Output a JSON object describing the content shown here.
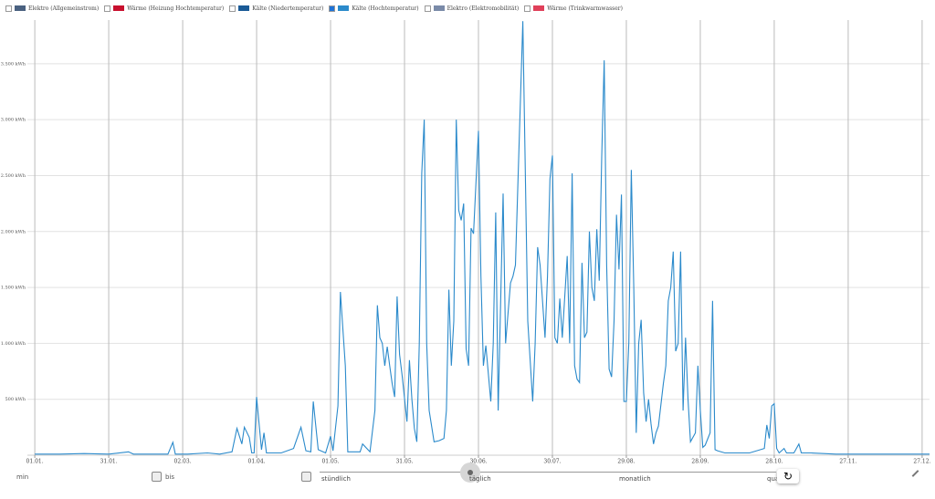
{
  "chart_data": {
    "type": "line",
    "series": [
      {
        "name": "Elektro (Allgemeinstrom)",
        "color": "#4a6180",
        "checked": false
      },
      {
        "name": "Wärme (Heizung Hochtemperatur)",
        "color": "#c8102e",
        "checked": false
      },
      {
        "name": "Kälte (Niedertemperatur)",
        "color": "#1a5a96",
        "checked": false
      },
      {
        "name": "Kälte (Hochtemperatur)",
        "color": "#2b8acb",
        "checked": true,
        "values": [
          10,
          10,
          15,
          10,
          30,
          10,
          10,
          10,
          115,
          10,
          10,
          20,
          10,
          30,
          240,
          100,
          250,
          160,
          20,
          20,
          520,
          50,
          200,
          20,
          20,
          60,
          250,
          40,
          30,
          480,
          50,
          20,
          170,
          40,
          440,
          1460,
          800,
          30,
          30,
          100,
          30,
          400,
          1340,
          1050,
          1000,
          800,
          970,
          800,
          640,
          520,
          1420,
          900,
          720,
          300,
          850,
          500,
          240,
          120,
          1000,
          2520,
          3000,
          1000,
          400,
          120,
          130,
          150,
          400,
          1480,
          800,
          1200,
          3000,
          2190,
          2100,
          2250,
          950,
          800,
          2030,
          1980,
          2900,
          1600,
          800,
          980,
          480,
          1000,
          2170,
          400,
          2340,
          1000,
          1540,
          1600,
          1700,
          3880,
          1200,
          480,
          1000,
          1860,
          1700,
          1050,
          1600,
          2470,
          2680,
          1050,
          1000,
          1400,
          1050,
          1780,
          1000,
          2520,
          800,
          680,
          650,
          1720,
          1050,
          1100,
          2000,
          1500,
          1380,
          2020,
          1560,
          2670,
          3530,
          1700,
          770,
          700,
          1200,
          2150,
          1660,
          2330,
          480,
          480,
          1010,
          2550,
          1500,
          200,
          1000,
          1210,
          560,
          300,
          500,
          280,
          100,
          200,
          260,
          640,
          800,
          1380,
          1500,
          1820,
          930,
          1000,
          1820,
          400,
          1050,
          500,
          120,
          200,
          800,
          400,
          70,
          90,
          200,
          1380,
          50,
          40,
          20,
          20,
          60,
          270,
          150,
          440,
          460,
          60,
          20,
          60,
          20,
          20,
          100,
          20,
          20,
          10,
          10,
          10
        ]
      },
      {
        "name": "Elektro (Elektromobilität)",
        "color": "#7a8aa8",
        "checked": false
      },
      {
        "name": "Wärme (Trinkwarmwasser)",
        "color": "#e0405a",
        "checked": false
      }
    ],
    "x": [
      0,
      10,
      20,
      30,
      38,
      40,
      50,
      54,
      56,
      57,
      62,
      70,
      75,
      80,
      82,
      84,
      85,
      87,
      88,
      89,
      90,
      92,
      93,
      94,
      100,
      105,
      108,
      110,
      112,
      113,
      115,
      118,
      120,
      121,
      123,
      124,
      126,
      127,
      132,
      133,
      136,
      138,
      139,
      140,
      141,
      142,
      143,
      144,
      145,
      146,
      147,
      148,
      149,
      151,
      152,
      153,
      154,
      155,
      156,
      157,
      158,
      159,
      160,
      162,
      164,
      166,
      167,
      168,
      169,
      170,
      171,
      172,
      173,
      174,
      175,
      176,
      177,
      178,
      180,
      181,
      182,
      183,
      185,
      186,
      187,
      188,
      190,
      191,
      193,
      194,
      195,
      198,
      200,
      202,
      203,
      204,
      205,
      207,
      208,
      209,
      210,
      211,
      212,
      213,
      214,
      216,
      217,
      218,
      219,
      220,
      221,
      222,
      223,
      224,
      225,
      226,
      227,
      228,
      229,
      230,
      231,
      232,
      233,
      234,
      235,
      236,
      237,
      238,
      239,
      240,
      241,
      242,
      243,
      244,
      245,
      246,
      247,
      248,
      249,
      250,
      251,
      252,
      253,
      255,
      256,
      257,
      258,
      259,
      260,
      261,
      262,
      263,
      264,
      265,
      266,
      268,
      269,
      270,
      271,
      272,
      274,
      275,
      276,
      277,
      280,
      290,
      296,
      297,
      298,
      299,
      300,
      301,
      302,
      304,
      305,
      308,
      310,
      311,
      315,
      325,
      340,
      363
    ],
    "xlim": [
      -3,
      363
    ],
    "xticks": [
      {
        "value": 0,
        "label": "01.01."
      },
      {
        "value": 30,
        "label": "31.01."
      },
      {
        "value": 60,
        "label": "02.03."
      },
      {
        "value": 90,
        "label": "01.04."
      },
      {
        "value": 120,
        "label": "01.05."
      },
      {
        "value": 150,
        "label": "31.05."
      },
      {
        "value": 180,
        "label": "30.06."
      },
      {
        "value": 210,
        "label": "30.07."
      },
      {
        "value": 240,
        "label": "29.08."
      },
      {
        "value": 270,
        "label": "28.09."
      },
      {
        "value": 300,
        "label": "28.10."
      },
      {
        "value": 330,
        "label": "27.11."
      },
      {
        "value": 360,
        "label": "27.12."
      }
    ],
    "ylim": [
      0,
      3890
    ],
    "yticks": [
      {
        "value": 500,
        "label": "500 kWh"
      },
      {
        "value": 1000,
        "label": "1.000 kWh"
      },
      {
        "value": 1500,
        "label": "1.500 kWh"
      },
      {
        "value": 2000,
        "label": "2.000 kWh"
      },
      {
        "value": 2500,
        "label": "2.500 kWh"
      },
      {
        "value": 3000,
        "label": "3.000 kWh"
      },
      {
        "value": 3500,
        "label": "3.500 kWh"
      }
    ],
    "grid": true
  },
  "controls": {
    "min": "min",
    "bis": "bis",
    "granularity": [
      "stündlich",
      "täglich",
      "monatlich",
      "quar"
    ]
  }
}
